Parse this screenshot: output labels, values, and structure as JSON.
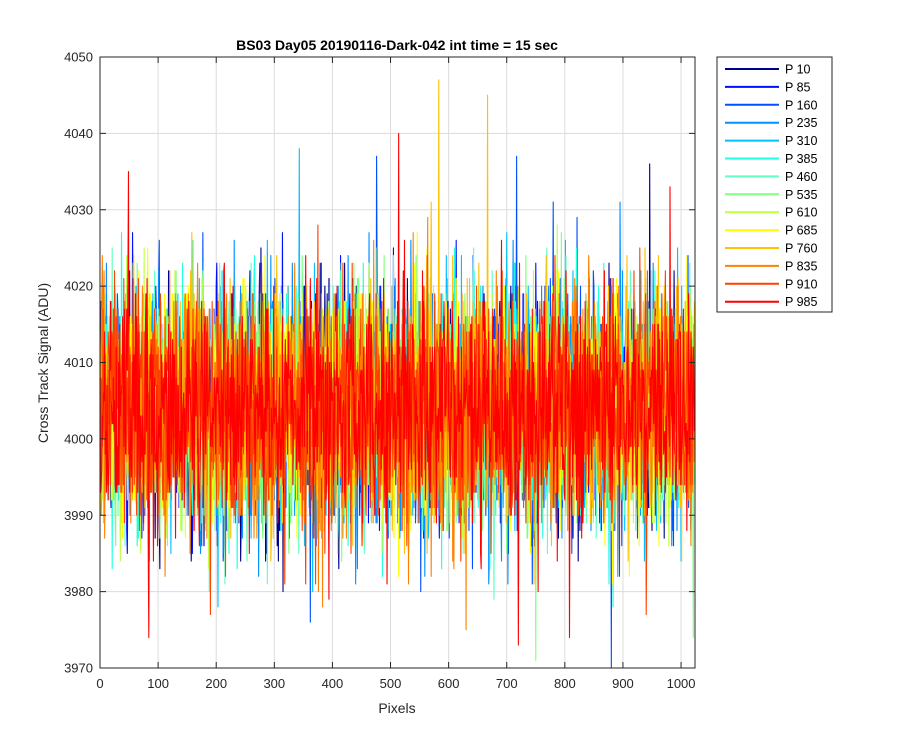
{
  "chart_data": {
    "type": "line",
    "title": "BS03 Day05 20190116-Dark-042 int time = 15 sec",
    "xlabel": "Pixels",
    "ylabel": "Cross Track Signal (ADU)",
    "xlim": [
      0,
      1024
    ],
    "ylim": [
      3970,
      4050
    ],
    "xticks": [
      0,
      100,
      200,
      300,
      400,
      500,
      600,
      700,
      800,
      900,
      1000
    ],
    "yticks": [
      3970,
      3980,
      3990,
      4000,
      4010,
      4020,
      4030,
      4040,
      4050
    ],
    "grid": true,
    "legend_position": "outside-top-right",
    "noise_model": {
      "points_per_series": 1024,
      "mean": 4004,
      "std": 7.5,
      "min": 3970,
      "max": 4047
    },
    "series": [
      {
        "name": "P 10",
        "color": "#00008f"
      },
      {
        "name": "P 85",
        "color": "#0010ff"
      },
      {
        "name": "P 160",
        "color": "#0050ff"
      },
      {
        "name": "P 235",
        "color": "#0090ff"
      },
      {
        "name": "P 310",
        "color": "#00c0ff"
      },
      {
        "name": "P 385",
        "color": "#20ffdf"
      },
      {
        "name": "P 460",
        "color": "#60ffc0"
      },
      {
        "name": "P 535",
        "color": "#80ff80"
      },
      {
        "name": "P 610",
        "color": "#c0ff40"
      },
      {
        "name": "P 685",
        "color": "#ffff00"
      },
      {
        "name": "P 760",
        "color": "#ffc000"
      },
      {
        "name": "P 835",
        "color": "#ff8000"
      },
      {
        "name": "P 910",
        "color": "#ff4000"
      },
      {
        "name": "P 985",
        "color": "#ff0000"
      }
    ],
    "outliers": [
      {
        "series": "P 760",
        "x": 583,
        "y": 4047
      },
      {
        "series": "P 760",
        "x": 667,
        "y": 4045
      },
      {
        "series": "P 985",
        "x": 514,
        "y": 4040
      },
      {
        "series": "P 310",
        "x": 343,
        "y": 4038
      },
      {
        "series": "P 985",
        "x": 49,
        "y": 4035
      },
      {
        "series": "P 160",
        "x": 476,
        "y": 4037
      },
      {
        "series": "P 160",
        "x": 717,
        "y": 4037
      },
      {
        "series": "P 10",
        "x": 946,
        "y": 4036
      },
      {
        "series": "P 985",
        "x": 84,
        "y": 3974
      },
      {
        "series": "P 835",
        "x": 630,
        "y": 3975
      },
      {
        "series": "P 160",
        "x": 880,
        "y": 3970
      },
      {
        "series": "P 535",
        "x": 750,
        "y": 3971
      },
      {
        "series": "P 985",
        "x": 720,
        "y": 3973
      },
      {
        "series": "P 985",
        "x": 808,
        "y": 3974
      },
      {
        "series": "P 160",
        "x": 362,
        "y": 3976
      },
      {
        "series": "P 535",
        "x": 1021,
        "y": 3974
      }
    ]
  }
}
